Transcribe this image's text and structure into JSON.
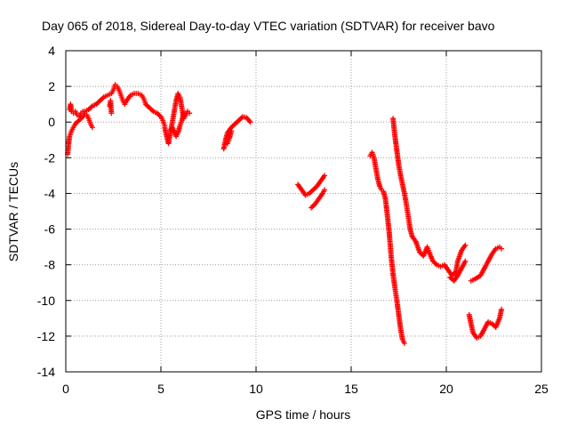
{
  "chart_data": {
    "type": "scatter",
    "title": "Day 065 of 2018, Sidereal Day-to-day VTEC variation (SDTVAR) for receiver bavo",
    "xlabel": "GPS time / hours",
    "ylabel": "SDTVAR / TECUs",
    "xlim": [
      0,
      25
    ],
    "ylim": [
      -14,
      4
    ],
    "xticks": [
      0,
      5,
      10,
      15,
      20,
      25
    ],
    "yticks": [
      -14,
      -12,
      -10,
      -8,
      -6,
      -4,
      -2,
      0,
      2,
      4
    ],
    "grid": true,
    "marker": "+",
    "marker_color": "#ff0000",
    "series": [
      {
        "segments": [
          [
            [
              0.1,
              -1.8
            ],
            [
              0.15,
              -1.2
            ],
            [
              0.2,
              -0.8
            ],
            [
              0.3,
              -0.5
            ],
            [
              0.4,
              -0.3
            ],
            [
              0.5,
              -0.1
            ],
            [
              0.7,
              0.1
            ],
            [
              0.9,
              0.3
            ],
            [
              1.0,
              0.5
            ],
            [
              1.1,
              0.4
            ],
            [
              1.2,
              0.2
            ],
            [
              1.3,
              -0.1
            ],
            [
              1.4,
              -0.3
            ]
          ],
          [
            [
              0.2,
              0.7
            ],
            [
              0.25,
              1.0
            ],
            [
              0.3,
              0.6
            ],
            [
              0.4,
              0.5
            ],
            [
              0.5,
              0.6
            ],
            [
              0.6,
              0.4
            ],
            [
              0.7,
              0.3
            ],
            [
              0.8,
              0.5
            ],
            [
              0.9,
              0.6
            ]
          ],
          [
            [
              1.0,
              0.6
            ],
            [
              1.2,
              0.7
            ],
            [
              1.4,
              0.9
            ],
            [
              1.6,
              1.0
            ],
            [
              1.8,
              1.2
            ],
            [
              2.0,
              1.4
            ],
            [
              2.2,
              1.5
            ],
            [
              2.4,
              1.6
            ],
            [
              2.5,
              1.8
            ],
            [
              2.6,
              2.1
            ],
            [
              2.7,
              2.0
            ],
            [
              2.8,
              1.8
            ],
            [
              2.9,
              1.5
            ],
            [
              3.0,
              1.2
            ],
            [
              3.1,
              1.0
            ],
            [
              3.2,
              1.2
            ],
            [
              3.4,
              1.5
            ],
            [
              3.6,
              1.6
            ],
            [
              3.8,
              1.6
            ],
            [
              4.0,
              1.5
            ],
            [
              4.1,
              1.3
            ],
            [
              4.2,
              1.0
            ],
            [
              4.4,
              0.8
            ],
            [
              4.6,
              0.6
            ],
            [
              4.8,
              0.5
            ],
            [
              5.0,
              0.3
            ],
            [
              5.1,
              0.1
            ],
            [
              5.2,
              -0.2
            ]
          ],
          [
            [
              2.3,
              0.9
            ],
            [
              2.35,
              1.2
            ],
            [
              2.4,
              0.5
            ]
          ],
          [
            [
              5.2,
              -0.3
            ],
            [
              5.3,
              -0.8
            ],
            [
              5.4,
              -1.2
            ],
            [
              5.5,
              -0.6
            ],
            [
              5.6,
              0.0
            ],
            [
              5.7,
              0.6
            ],
            [
              5.8,
              1.2
            ],
            [
              5.9,
              1.6
            ],
            [
              6.0,
              1.4
            ],
            [
              6.1,
              0.8
            ],
            [
              6.2,
              0.2
            ],
            [
              6.3,
              0.4
            ],
            [
              6.4,
              0.6
            ],
            [
              6.5,
              0.5
            ]
          ],
          [
            [
              5.5,
              -0.5
            ],
            [
              5.6,
              -0.3
            ],
            [
              5.8,
              -0.8
            ],
            [
              5.9,
              -0.6
            ],
            [
              6.0,
              -0.2
            ],
            [
              6.1,
              0.1
            ],
            [
              6.2,
              0.5
            ]
          ],
          [
            [
              8.3,
              -1.5
            ],
            [
              8.4,
              -1.0
            ],
            [
              8.5,
              -0.6
            ],
            [
              8.7,
              -0.3
            ],
            [
              8.9,
              -0.1
            ],
            [
              9.1,
              0.1
            ],
            [
              9.3,
              0.3
            ],
            [
              9.5,
              0.25
            ],
            [
              9.7,
              0.0
            ]
          ],
          [
            [
              8.5,
              -1.2
            ],
            [
              8.6,
              -0.9
            ],
            [
              8.7,
              -0.5
            ]
          ],
          [
            [
              12.2,
              -3.5
            ],
            [
              12.4,
              -3.8
            ],
            [
              12.6,
              -4.1
            ],
            [
              12.8,
              -4.0
            ],
            [
              13.0,
              -3.8
            ],
            [
              13.2,
              -3.6
            ],
            [
              13.4,
              -3.3
            ],
            [
              13.6,
              -3.0
            ]
          ],
          [
            [
              12.9,
              -4.8
            ],
            [
              13.1,
              -4.6
            ],
            [
              13.3,
              -4.3
            ],
            [
              13.5,
              -4.0
            ],
            [
              13.6,
              -3.8
            ]
          ],
          [
            [
              16.0,
              -1.9
            ],
            [
              16.1,
              -1.7
            ],
            [
              16.2,
              -2.0
            ],
            [
              16.3,
              -2.6
            ],
            [
              16.4,
              -3.2
            ],
            [
              16.5,
              -3.6
            ],
            [
              16.6,
              -3.8
            ],
            [
              16.7,
              -3.9
            ],
            [
              16.8,
              -4.3
            ],
            [
              16.9,
              -5.2
            ],
            [
              17.0,
              -6.2
            ],
            [
              17.1,
              -7.5
            ],
            [
              17.2,
              -8.5
            ],
            [
              17.3,
              -9.3
            ],
            [
              17.4,
              -10.0
            ],
            [
              17.5,
              -10.8
            ],
            [
              17.6,
              -11.6
            ],
            [
              17.7,
              -12.2
            ],
            [
              17.8,
              -12.4
            ]
          ],
          [
            [
              17.2,
              0.2
            ],
            [
              17.3,
              -0.8
            ],
            [
              17.4,
              -1.6
            ],
            [
              17.5,
              -2.4
            ],
            [
              17.6,
              -3.0
            ],
            [
              17.7,
              -3.5
            ],
            [
              17.8,
              -4.0
            ],
            [
              17.9,
              -4.6
            ],
            [
              18.0,
              -5.3
            ],
            [
              18.1,
              -6.0
            ],
            [
              18.2,
              -6.4
            ],
            [
              18.4,
              -6.7
            ],
            [
              18.6,
              -7.3
            ],
            [
              18.8,
              -7.5
            ],
            [
              19.0,
              -7.0
            ],
            [
              19.1,
              -7.3
            ],
            [
              19.3,
              -7.8
            ],
            [
              19.5,
              -8.0
            ],
            [
              19.7,
              -8.1
            ],
            [
              19.9,
              -8.0
            ],
            [
              20.1,
              -8.3
            ],
            [
              20.3,
              -8.6
            ],
            [
              20.5,
              -8.4
            ],
            [
              20.6,
              -7.8
            ],
            [
              20.8,
              -7.2
            ],
            [
              21.0,
              -6.9
            ]
          ],
          [
            [
              20.2,
              -8.7
            ],
            [
              20.4,
              -8.9
            ],
            [
              20.6,
              -8.6
            ],
            [
              20.8,
              -8.2
            ],
            [
              21.0,
              -7.8
            ]
          ],
          [
            [
              21.2,
              -10.8
            ],
            [
              21.3,
              -11.3
            ],
            [
              21.4,
              -11.8
            ],
            [
              21.6,
              -12.1
            ],
            [
              21.8,
              -12.0
            ],
            [
              22.0,
              -11.6
            ],
            [
              22.2,
              -11.2
            ],
            [
              22.4,
              -11.3
            ],
            [
              22.6,
              -11.5
            ],
            [
              22.8,
              -11.0
            ],
            [
              22.9,
              -10.5
            ]
          ],
          [
            [
              21.3,
              -8.9
            ],
            [
              21.5,
              -8.8
            ],
            [
              21.8,
              -8.6
            ],
            [
              22.0,
              -8.2
            ],
            [
              22.2,
              -7.8
            ],
            [
              22.4,
              -7.4
            ],
            [
              22.6,
              -7.1
            ],
            [
              22.8,
              -7.0
            ],
            [
              22.9,
              -7.1
            ]
          ]
        ]
      }
    ]
  }
}
